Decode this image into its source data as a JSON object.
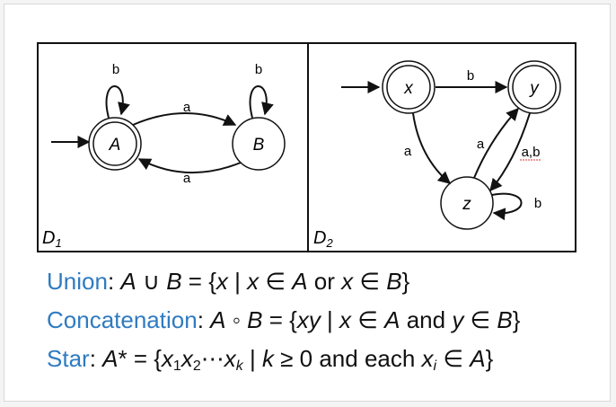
{
  "diagram": {
    "d1_label": "D",
    "d1_sub": "1",
    "d2_label": "D",
    "d2_sub": "2",
    "d1_states": {
      "A": "A",
      "B": "B"
    },
    "d1_edges": {
      "a_top": "a",
      "a_bottom": "a",
      "loop_A": "b",
      "loop_B": "b"
    },
    "d2_states": {
      "x": "x",
      "y": "y",
      "z": "z"
    },
    "d2_edges": {
      "x_to_y": "b",
      "x_to_z": "a",
      "z_to_y": "a",
      "y_to_z": "a,b",
      "loop_z": "b"
    }
  },
  "definitions": {
    "union_name": "Union",
    "concat_name": "Concatenation",
    "star_name": "Star"
  },
  "colors": {
    "accent": "#2f7bc0",
    "line": "#111111"
  }
}
